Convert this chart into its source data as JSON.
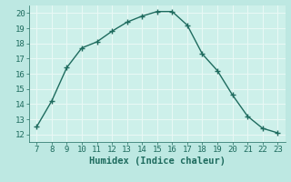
{
  "x": [
    7,
    8,
    9,
    10,
    11,
    12,
    13,
    14,
    15,
    16,
    17,
    18,
    19,
    20,
    21,
    22,
    23
  ],
  "y": [
    12.5,
    14.2,
    16.4,
    17.7,
    18.1,
    18.8,
    19.4,
    19.8,
    20.1,
    20.1,
    19.2,
    17.3,
    16.2,
    14.6,
    13.2,
    12.4,
    12.1
  ],
  "xlabel": "Humidex (Indice chaleur)",
  "xlim_min": 6.5,
  "xlim_max": 23.5,
  "ylim_min": 11.5,
  "ylim_max": 20.5,
  "xticks": [
    7,
    8,
    9,
    10,
    11,
    12,
    13,
    14,
    15,
    16,
    17,
    18,
    19,
    20,
    21,
    22,
    23
  ],
  "yticks": [
    12,
    13,
    14,
    15,
    16,
    17,
    18,
    19,
    20
  ],
  "bg_color": "#bde8e2",
  "line_color": "#1e6b5e",
  "grid_color": "#e8f8f5",
  "face_color": "#cdf0ea",
  "tick_color": "#1e6b5e",
  "label_fontsize": 7.5,
  "tick_fontsize": 6.5,
  "line_width": 1.0,
  "marker_size": 4
}
